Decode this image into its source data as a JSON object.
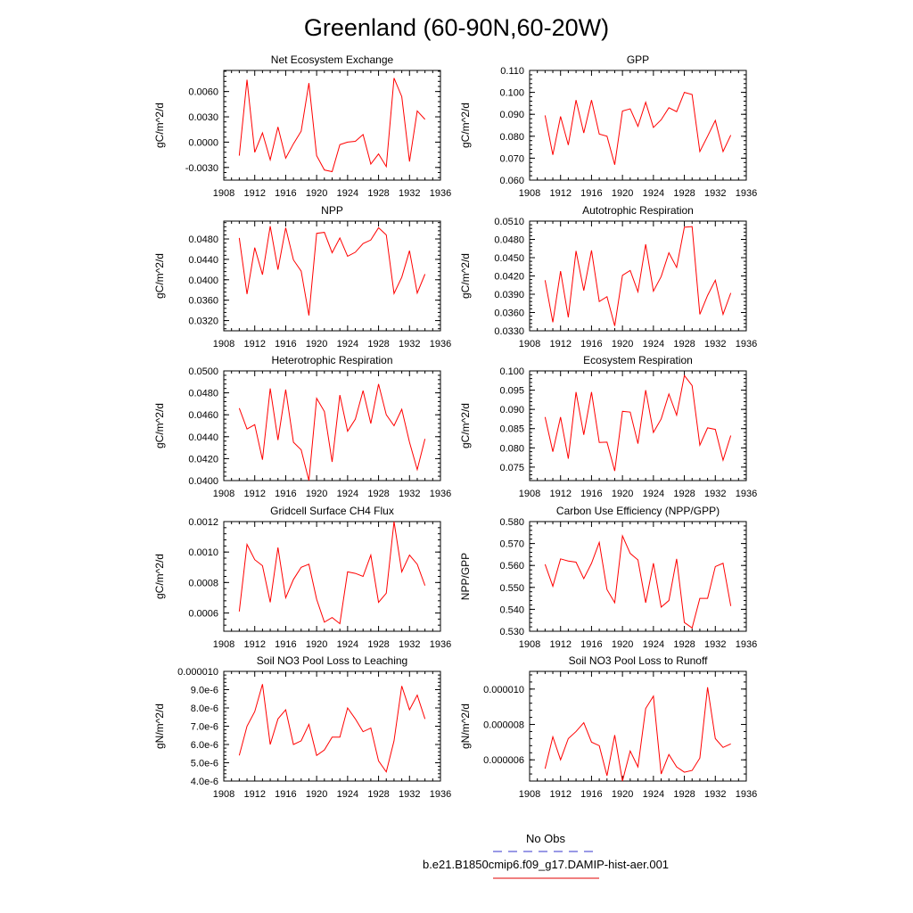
{
  "title": "Greenland (60-90N,60-20W)",
  "legend": {
    "entries": [
      {
        "label": "No Obs",
        "color": "#3333cc",
        "dash": true
      },
      {
        "label": "b.e21.B1850cmip6.f09_g17.DAMIP-hist-aer.001",
        "color": "#e00000",
        "dash": false
      }
    ]
  },
  "colors": {
    "series": "#ff0000"
  },
  "chart_data": [
    {
      "type": "line",
      "title": "Net Ecosystem Exchange",
      "ylabel": "gC/m^2/d",
      "xlim": [
        1908,
        1936
      ],
      "ylim": [
        -0.0045,
        0.0085
      ],
      "xticks": [
        "1908",
        "1912",
        "1916",
        "1920",
        "1924",
        "1928",
        "1932",
        "1936"
      ],
      "yticks": [
        {
          "v": -0.003,
          "t": "-0.0030"
        },
        {
          "v": 0.0,
          "t": "0.0000"
        },
        {
          "v": 0.003,
          "t": "0.0030"
        },
        {
          "v": 0.006,
          "t": "0.0060"
        }
      ],
      "x": [
        1910,
        1911,
        1912,
        1913,
        1914,
        1915,
        1916,
        1917,
        1918,
        1919,
        1920,
        1921,
        1922,
        1923,
        1924,
        1925,
        1926,
        1927,
        1928,
        1929,
        1930,
        1931,
        1932,
        1933,
        1934
      ],
      "values": [
        -0.0016,
        0.0074,
        -0.0012,
        0.0011,
        -0.0021,
        0.0018,
        -0.0019,
        -0.0002,
        0.0013,
        0.007,
        -0.0016,
        -0.0033,
        -0.0035,
        -0.0003,
        0.0,
        0.0001,
        0.0009,
        -0.0026,
        -0.0014,
        -0.0029,
        0.0076,
        0.0054,
        -0.0023,
        0.0037,
        0.0027
      ]
    },
    {
      "type": "line",
      "title": "GPP",
      "ylabel": "gC/m^2/d",
      "xlim": [
        1908,
        1936
      ],
      "ylim": [
        0.06,
        0.11
      ],
      "xticks": [
        "1908",
        "1912",
        "1916",
        "1920",
        "1924",
        "1928",
        "1932",
        "1936"
      ],
      "yticks": [
        {
          "v": 0.06,
          "t": "0.060"
        },
        {
          "v": 0.07,
          "t": "0.070"
        },
        {
          "v": 0.08,
          "t": "0.080"
        },
        {
          "v": 0.09,
          "t": "0.090"
        },
        {
          "v": 0.1,
          "t": "0.100"
        },
        {
          "v": 0.11,
          "t": "0.110"
        }
      ],
      "x": [
        1910,
        1911,
        1912,
        1913,
        1914,
        1915,
        1916,
        1917,
        1918,
        1919,
        1920,
        1921,
        1922,
        1923,
        1924,
        1925,
        1926,
        1927,
        1928,
        1929,
        1930,
        1931,
        1932,
        1933,
        1934
      ],
      "values": [
        0.0895,
        0.0715,
        0.089,
        0.076,
        0.0965,
        0.0815,
        0.0965,
        0.081,
        0.08,
        0.067,
        0.0915,
        0.0925,
        0.0845,
        0.0955,
        0.084,
        0.0875,
        0.093,
        0.0912,
        0.1,
        0.099,
        0.073,
        0.08,
        0.0872,
        0.073,
        0.0805
      ]
    },
    {
      "type": "line",
      "title": "NPP",
      "ylabel": "gC/m^2/d",
      "xlim": [
        1908,
        1936
      ],
      "ylim": [
        0.03,
        0.0515
      ],
      "xticks": [
        "1908",
        "1912",
        "1916",
        "1920",
        "1924",
        "1928",
        "1932",
        "1936"
      ],
      "yticks": [
        {
          "v": 0.032,
          "t": "0.0320"
        },
        {
          "v": 0.036,
          "t": "0.0360"
        },
        {
          "v": 0.04,
          "t": "0.0400"
        },
        {
          "v": 0.044,
          "t": "0.0440"
        },
        {
          "v": 0.048,
          "t": "0.0480"
        }
      ],
      "x": [
        1910,
        1911,
        1912,
        1913,
        1914,
        1915,
        1916,
        1917,
        1918,
        1919,
        1920,
        1921,
        1922,
        1923,
        1924,
        1925,
        1926,
        1927,
        1928,
        1929,
        1930,
        1931,
        1932,
        1933,
        1934
      ],
      "values": [
        0.0482,
        0.0372,
        0.0463,
        0.041,
        0.0505,
        0.042,
        0.0502,
        0.0439,
        0.0417,
        0.033,
        0.0491,
        0.0493,
        0.0453,
        0.0482,
        0.0446,
        0.0454,
        0.0471,
        0.0478,
        0.0502,
        0.0488,
        0.0373,
        0.0405,
        0.0457,
        0.0374,
        0.0411
      ]
    },
    {
      "type": "line",
      "title": "Autotrophic Respiration",
      "ylabel": "gC/m^2/d",
      "xlim": [
        1908,
        1936
      ],
      "ylim": [
        0.033,
        0.051
      ],
      "xticks": [
        "1908",
        "1912",
        "1916",
        "1920",
        "1924",
        "1928",
        "1932",
        "1936"
      ],
      "yticks": [
        {
          "v": 0.033,
          "t": "0.0330"
        },
        {
          "v": 0.036,
          "t": "0.0360"
        },
        {
          "v": 0.039,
          "t": "0.0390"
        },
        {
          "v": 0.042,
          "t": "0.0420"
        },
        {
          "v": 0.045,
          "t": "0.0450"
        },
        {
          "v": 0.048,
          "t": "0.0480"
        },
        {
          "v": 0.051,
          "t": "0.0510"
        }
      ],
      "x": [
        1910,
        1911,
        1912,
        1913,
        1914,
        1915,
        1916,
        1917,
        1918,
        1919,
        1920,
        1921,
        1922,
        1923,
        1924,
        1925,
        1926,
        1927,
        1928,
        1929,
        1930,
        1931,
        1932,
        1933,
        1934
      ],
      "values": [
        0.0413,
        0.0344,
        0.0428,
        0.0352,
        0.0461,
        0.0396,
        0.0462,
        0.0378,
        0.0386,
        0.0338,
        0.0421,
        0.0429,
        0.0394,
        0.0472,
        0.0395,
        0.0419,
        0.0458,
        0.0434,
        0.05,
        0.0501,
        0.0357,
        0.0388,
        0.0413,
        0.0357,
        0.0392
      ]
    },
    {
      "type": "line",
      "title": "Heterotrophic Respiration",
      "ylabel": "gC/m^2/d",
      "xlim": [
        1908,
        1936
      ],
      "ylim": [
        0.04,
        0.05
      ],
      "xticks": [
        "1908",
        "1912",
        "1916",
        "1920",
        "1924",
        "1928",
        "1932",
        "1936"
      ],
      "yticks": [
        {
          "v": 0.04,
          "t": "0.0400"
        },
        {
          "v": 0.042,
          "t": "0.0420"
        },
        {
          "v": 0.044,
          "t": "0.0440"
        },
        {
          "v": 0.046,
          "t": "0.0460"
        },
        {
          "v": 0.048,
          "t": "0.0480"
        },
        {
          "v": 0.05,
          "t": "0.0500"
        }
      ],
      "x": [
        1910,
        1911,
        1912,
        1913,
        1914,
        1915,
        1916,
        1917,
        1918,
        1919,
        1920,
        1921,
        1922,
        1923,
        1924,
        1925,
        1926,
        1927,
        1928,
        1929,
        1930,
        1931,
        1932,
        1933,
        1934
      ],
      "values": [
        0.0466,
        0.0447,
        0.0451,
        0.0419,
        0.0484,
        0.0437,
        0.0483,
        0.0435,
        0.0428,
        0.04,
        0.0475,
        0.0463,
        0.0417,
        0.0478,
        0.0445,
        0.0456,
        0.0482,
        0.0452,
        0.0488,
        0.046,
        0.045,
        0.0465,
        0.0435,
        0.041,
        0.0438
      ]
    },
    {
      "type": "line",
      "title": "Ecosystem Respiration",
      "ylabel": "gC/m^2/d",
      "xlim": [
        1908,
        1936
      ],
      "ylim": [
        0.0715,
        0.1
      ],
      "xticks": [
        "1908",
        "1912",
        "1916",
        "1920",
        "1924",
        "1928",
        "1932",
        "1936"
      ],
      "yticks": [
        {
          "v": 0.075,
          "t": "0.075"
        },
        {
          "v": 0.08,
          "t": "0.080"
        },
        {
          "v": 0.085,
          "t": "0.085"
        },
        {
          "v": 0.09,
          "t": "0.090"
        },
        {
          "v": 0.095,
          "t": "0.095"
        },
        {
          "v": 0.1,
          "t": "0.100"
        }
      ],
      "x": [
        1910,
        1911,
        1912,
        1913,
        1914,
        1915,
        1916,
        1917,
        1918,
        1919,
        1920,
        1921,
        1922,
        1923,
        1924,
        1925,
        1926,
        1927,
        1928,
        1929,
        1930,
        1931,
        1932,
        1933,
        1934
      ],
      "values": [
        0.088,
        0.079,
        0.088,
        0.0772,
        0.0945,
        0.0834,
        0.0945,
        0.0814,
        0.0815,
        0.074,
        0.0895,
        0.0893,
        0.0811,
        0.095,
        0.084,
        0.0875,
        0.094,
        0.0885,
        0.0988,
        0.0962,
        0.0807,
        0.0852,
        0.0848,
        0.0768,
        0.0832
      ]
    },
    {
      "type": "line",
      "title": "Gridcell Surface CH4 Flux",
      "ylabel": "gC/m^2/d",
      "xlim": [
        1908,
        1936
      ],
      "ylim": [
        0.00048,
        0.0012
      ],
      "xticks": [
        "1908",
        "1912",
        "1916",
        "1920",
        "1924",
        "1928",
        "1932",
        "1936"
      ],
      "yticks": [
        {
          "v": 0.0006,
          "t": "0.0006"
        },
        {
          "v": 0.0008,
          "t": "0.0008"
        },
        {
          "v": 0.001,
          "t": "0.0010"
        },
        {
          "v": 0.0012,
          "t": "0.0012"
        }
      ],
      "x": [
        1910,
        1911,
        1912,
        1913,
        1914,
        1915,
        1916,
        1917,
        1918,
        1919,
        1920,
        1921,
        1922,
        1923,
        1924,
        1925,
        1926,
        1927,
        1928,
        1929,
        1930,
        1931,
        1932,
        1933,
        1934
      ],
      "values": [
        0.00061,
        0.00105,
        0.00095,
        0.00091,
        0.00067,
        0.00103,
        0.0007,
        0.00082,
        0.0009,
        0.00092,
        0.00069,
        0.00054,
        0.00057,
        0.00053,
        0.00087,
        0.00086,
        0.00084,
        0.00098,
        0.00067,
        0.00073,
        0.0012,
        0.00087,
        0.00098,
        0.00092,
        0.00078
      ]
    },
    {
      "type": "line",
      "title": "Carbon Use Efficiency (NPP/GPP)",
      "ylabel": "NPP/GPP",
      "xlim": [
        1908,
        1936
      ],
      "ylim": [
        0.53,
        0.58
      ],
      "xticks": [
        "1908",
        "1912",
        "1916",
        "1920",
        "1924",
        "1928",
        "1932",
        "1936"
      ],
      "yticks": [
        {
          "v": 0.53,
          "t": "0.530"
        },
        {
          "v": 0.54,
          "t": "0.540"
        },
        {
          "v": 0.55,
          "t": "0.550"
        },
        {
          "v": 0.56,
          "t": "0.560"
        },
        {
          "v": 0.57,
          "t": "0.570"
        },
        {
          "v": 0.58,
          "t": "0.580"
        }
      ],
      "x": [
        1910,
        1911,
        1912,
        1913,
        1914,
        1915,
        1916,
        1917,
        1918,
        1919,
        1920,
        1921,
        1922,
        1923,
        1924,
        1925,
        1926,
        1927,
        1928,
        1929,
        1930,
        1931,
        1932,
        1933,
        1934
      ],
      "values": [
        0.5605,
        0.5505,
        0.563,
        0.562,
        0.5615,
        0.554,
        0.561,
        0.5705,
        0.549,
        0.543,
        0.5735,
        0.5655,
        0.5625,
        0.543,
        0.561,
        0.541,
        0.544,
        0.563,
        0.534,
        0.5315,
        0.545,
        0.545,
        0.5595,
        0.561,
        0.5415
      ]
    },
    {
      "type": "line",
      "title": "Soil NO3 Pool Loss to Leaching",
      "ylabel": "gN/m^2/d",
      "xlim": [
        1908,
        1936
      ],
      "ylim": [
        4e-06,
        1e-05
      ],
      "xticks": [
        "1908",
        "1912",
        "1916",
        "1920",
        "1924",
        "1928",
        "1932",
        "1936"
      ],
      "yticks": [
        {
          "v": 4e-06,
          "t": "4.0e-6"
        },
        {
          "v": 5e-06,
          "t": "5.0e-6"
        },
        {
          "v": 6e-06,
          "t": "6.0e-6"
        },
        {
          "v": 7e-06,
          "t": "7.0e-6"
        },
        {
          "v": 8e-06,
          "t": "8.0e-6"
        },
        {
          "v": 9e-06,
          "t": "9.0e-6"
        },
        {
          "v": 1e-05,
          "t": "0.000010"
        }
      ],
      "x": [
        1910,
        1911,
        1912,
        1913,
        1914,
        1915,
        1916,
        1917,
        1918,
        1919,
        1920,
        1921,
        1922,
        1923,
        1924,
        1925,
        1926,
        1927,
        1928,
        1929,
        1930,
        1931,
        1932,
        1933,
        1934
      ],
      "values": [
        5.4e-06,
        7e-06,
        7.8e-06,
        9.3e-06,
        6e-06,
        7.4e-06,
        7.9e-06,
        6e-06,
        6.2e-06,
        7.1e-06,
        5.4e-06,
        5.7e-06,
        6.4e-06,
        6.4e-06,
        8e-06,
        7.4e-06,
        6.7e-06,
        6.9e-06,
        5.1e-06,
        4.5e-06,
        6.2e-06,
        9.2e-06,
        7.9e-06,
        8.7e-06,
        7.4e-06
      ]
    },
    {
      "type": "line",
      "title": "Soil NO3 Pool Loss to Runoff",
      "ylabel": "gN/m^2/d",
      "xlim": [
        1908,
        1936
      ],
      "ylim": [
        4.8e-06,
        1.1e-05
      ],
      "xticks": [
        "1908",
        "1912",
        "1916",
        "1920",
        "1924",
        "1928",
        "1932",
        "1936"
      ],
      "yticks": [
        {
          "v": 6e-06,
          "t": "0.000006"
        },
        {
          "v": 8e-06,
          "t": "0.000008"
        },
        {
          "v": 1e-05,
          "t": "0.000010"
        }
      ],
      "x": [
        1910,
        1911,
        1912,
        1913,
        1914,
        1915,
        1916,
        1917,
        1918,
        1919,
        1920,
        1921,
        1922,
        1923,
        1924,
        1925,
        1926,
        1927,
        1928,
        1929,
        1930,
        1931,
        1932,
        1933,
        1934
      ],
      "values": [
        5.5e-06,
        7.3e-06,
        6e-06,
        7.2e-06,
        7.6e-06,
        8.1e-06,
        7e-06,
        6.8e-06,
        5.1e-06,
        7.4e-06,
        4.8e-06,
        6.5e-06,
        5.6e-06,
        8.9e-06,
        9.6e-06,
        5.2e-06,
        6.3e-06,
        5.6e-06,
        5.3e-06,
        5.4e-06,
        6.1e-06,
        1.01e-05,
        7.2e-06,
        6.7e-06,
        6.9e-06
      ]
    }
  ]
}
